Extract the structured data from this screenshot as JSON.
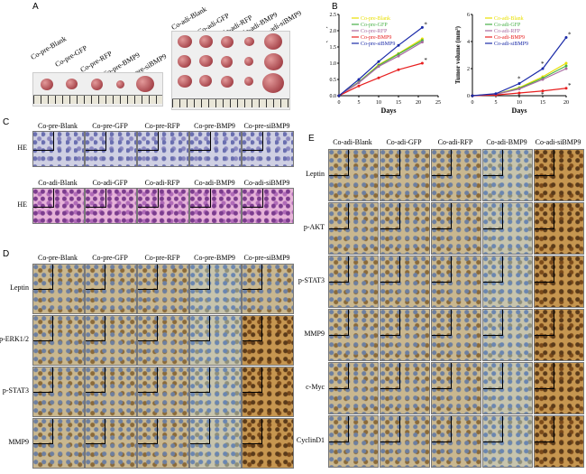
{
  "panel_labels": {
    "a": "A",
    "b": "B",
    "c": "C",
    "d": "D",
    "e": "E"
  },
  "panelA": {
    "pre_labels": [
      "Co-pre-Blank",
      "Co-pre-GFP",
      "Co-pre-RFP",
      "Co-pre-BMP9",
      "Co-pre-siBMP9"
    ],
    "adi_labels": [
      "Co-adi-Blank",
      "Co-adi-GFP",
      "Co-adi-RFP",
      "Co-adi-BMP9",
      "Co-adi-siBMP9"
    ]
  },
  "chart_data": [
    {
      "type": "line",
      "title": "",
      "xlabel": "Days",
      "ylabel": "Tumor volume (mm³)",
      "xlim": [
        0,
        25
      ],
      "ylim": [
        0,
        2.5
      ],
      "xticks": [
        "0",
        "5",
        "10",
        "15",
        "20",
        "25"
      ],
      "yticks": [
        "0.0",
        "0.5",
        "1.0",
        "1.5",
        "2.0",
        "2.5"
      ],
      "x": [
        0,
        5,
        10,
        15,
        21
      ],
      "series": [
        {
          "name": "Co-pre-Blank",
          "color": "#e8e000",
          "values": [
            0,
            0.42,
            0.95,
            1.3,
            1.75
          ]
        },
        {
          "name": "Co-pre-GFP",
          "color": "#48b048",
          "values": [
            0,
            0.42,
            0.93,
            1.28,
            1.7
          ]
        },
        {
          "name": "Co-pre-RFP",
          "color": "#a86aa0",
          "values": [
            0,
            0.4,
            0.9,
            1.22,
            1.65
          ]
        },
        {
          "name": "Co-pre-BMP9",
          "color": "#e82020",
          "values": [
            0,
            0.3,
            0.55,
            0.8,
            1.0
          ]
        },
        {
          "name": "Co-pre-siBMP9",
          "color": "#1a2aa8",
          "values": [
            0,
            0.5,
            1.05,
            1.55,
            2.1
          ]
        }
      ]
    },
    {
      "type": "line",
      "title": "",
      "xlabel": "Days",
      "ylabel": "Tumor volume (mm³)",
      "xlim": [
        0,
        20
      ],
      "ylim": [
        0,
        6
      ],
      "xticks": [
        "0",
        "5",
        "10",
        "15",
        "20"
      ],
      "yticks": [
        "0",
        "2",
        "4",
        "6"
      ],
      "x": [
        0,
        5,
        10,
        15,
        20
      ],
      "series": [
        {
          "name": "Co-adi-Blank",
          "color": "#e8e000",
          "values": [
            0,
            0.1,
            0.6,
            1.4,
            2.4
          ]
        },
        {
          "name": "Co-adi-GFP",
          "color": "#48b048",
          "values": [
            0,
            0.1,
            0.55,
            1.3,
            2.2
          ]
        },
        {
          "name": "Co-adi-RFP",
          "color": "#a86aa0",
          "values": [
            0,
            0.1,
            0.5,
            1.2,
            2.0
          ]
        },
        {
          "name": "Co-adi-BMP9",
          "color": "#e82020",
          "values": [
            0,
            0.05,
            0.2,
            0.35,
            0.55
          ]
        },
        {
          "name": "Co-adi-siBMP9",
          "color": "#1a2aa8",
          "values": [
            0,
            0.15,
            0.9,
            2.0,
            4.3
          ]
        }
      ]
    }
  ],
  "panelC": {
    "pre_cols": [
      "Co-pre-Blank",
      "Co-pre-GFP",
      "Co-pre-RFP",
      "Co-pre-BMP9",
      "Co-pre-siBMP9"
    ],
    "adi_cols": [
      "Co-adi-Blank",
      "Co-adi-GFP",
      "Co-adi-RFP",
      "Co-adi-BMP9",
      "Co-adi-siBMP9"
    ],
    "row_label": "HE"
  },
  "panelD": {
    "cols": [
      "Co-pre-Blank",
      "Co-pre-GFP",
      "Co-pre-RFP",
      "Co-pre-BMP9",
      "Co-pre-siBMP9"
    ],
    "rows": [
      "Leptin",
      "p-ERK1/2",
      "p-STAT3",
      "MMP9"
    ]
  },
  "panelE": {
    "cols": [
      "Co-adi-Blank",
      "Co-adi-GFP",
      "Co-adi-RFP",
      "Co-adi-BMP9",
      "Co-adi-siBMP9"
    ],
    "rows": [
      "Leptin",
      "p-AKT",
      "p-STAT3",
      "MMP9",
      "c-Myc",
      "CyclinD1"
    ]
  },
  "significance_mark": "*"
}
